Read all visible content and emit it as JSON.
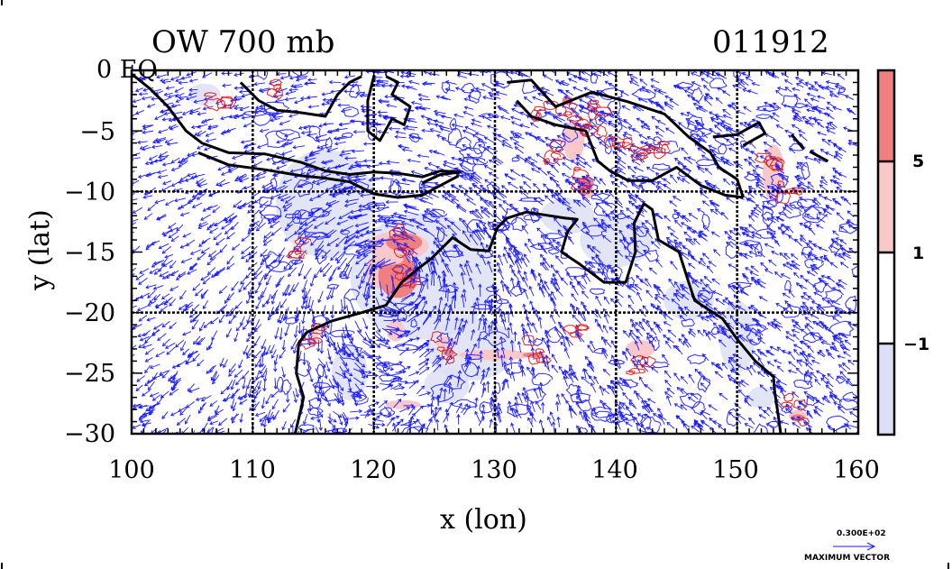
{
  "title": {
    "left": "OW 700 mb",
    "right": "011912"
  },
  "map": {
    "xlabel": "x (lon)",
    "ylabel": "y (lat)",
    "x_ticks": [
      "100",
      "110",
      "120",
      "130",
      "140",
      "150",
      "160"
    ],
    "y_ticks": [
      "0 EQ",
      "−5",
      "−10",
      "−15",
      "−20",
      "−25",
      "−30"
    ],
    "lon_range": [
      100,
      160
    ],
    "lat_range": [
      -30,
      0
    ],
    "gridlines_lon": [
      110,
      120,
      130,
      140,
      150
    ],
    "gridlines_lat": [
      -10,
      -20
    ],
    "vector_color": "#1a1aff",
    "coast_color": "#000000"
  },
  "colorbar": {
    "ticks": [
      "5",
      "1",
      "−1"
    ],
    "levels": [
      {
        "color": "#f08080"
      },
      {
        "color": "#f9c9c9"
      },
      {
        "color": "#ffffff"
      },
      {
        "color": "#dde0f5"
      }
    ]
  },
  "vector_key": {
    "value": "0.300E+02",
    "label": "MAXIMUM VECTOR"
  }
}
